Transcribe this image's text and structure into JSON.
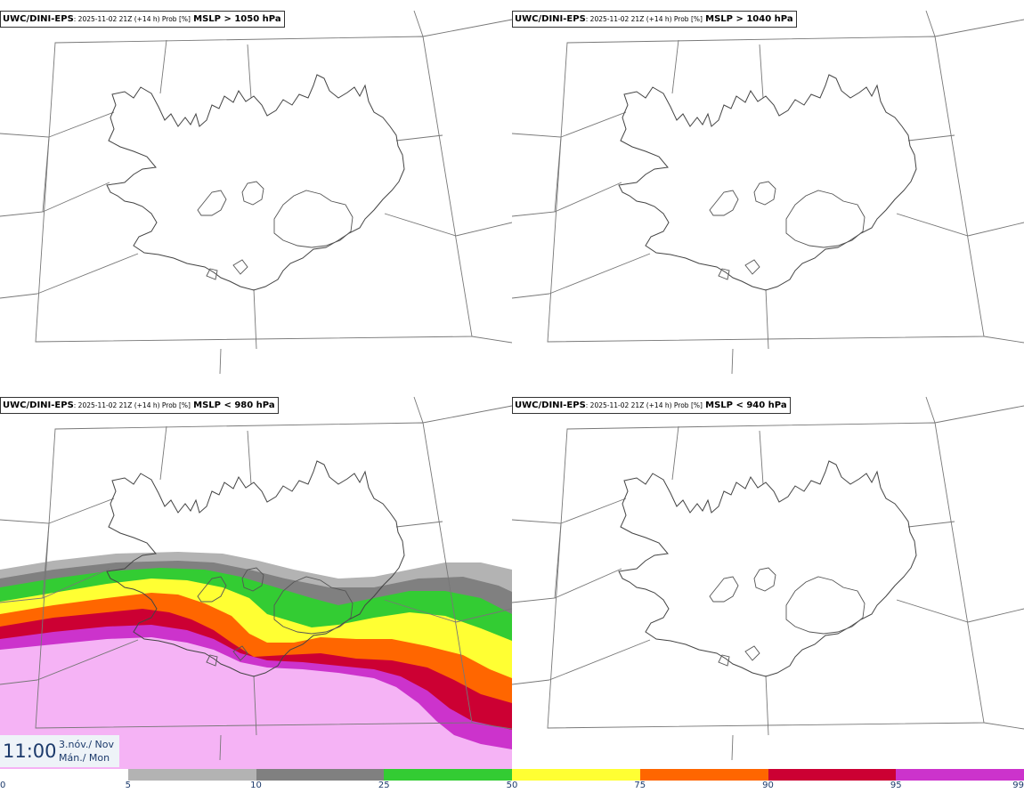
{
  "panels": [
    {
      "model": "UWC/DINI-EPS",
      "meta": ": 2025-11-02 21Z (+14 h) Prob [%]",
      "threshold": "MSLP > 1050 hPa",
      "has_field": false
    },
    {
      "model": "UWC/DINI-EPS",
      "meta": ": 2025-11-02 21Z (+14 h) Prob [%]",
      "threshold": "MSLP > 1040 hPa",
      "has_field": false
    },
    {
      "model": "UWC/DINI-EPS",
      "meta": ": 2025-11-02 21Z (+14 h) Prob [%]",
      "threshold": "MSLP < 980 hPa",
      "has_field": true
    },
    {
      "model": "UWC/DINI-EPS",
      "meta": ": 2025-11-02 21Z (+14 h) Prob [%]",
      "threshold": "MSLP < 940 hPa",
      "has_field": false
    }
  ],
  "valid_time": {
    "time": "11:00",
    "date_line1": "3.nóv./ Nov",
    "date_line2": "Mán./ Mon"
  },
  "colorbar": {
    "ticks": [
      "0",
      "5",
      "10",
      "25",
      "50",
      "75",
      "90",
      "95",
      "99"
    ],
    "colors": [
      "#ffffff",
      "#b3b3b3",
      "#808080",
      "#33cc33",
      "#ffff33",
      "#ff6600",
      "#cc0033",
      "#cc33cc",
      "#f5b3f5"
    ]
  }
}
